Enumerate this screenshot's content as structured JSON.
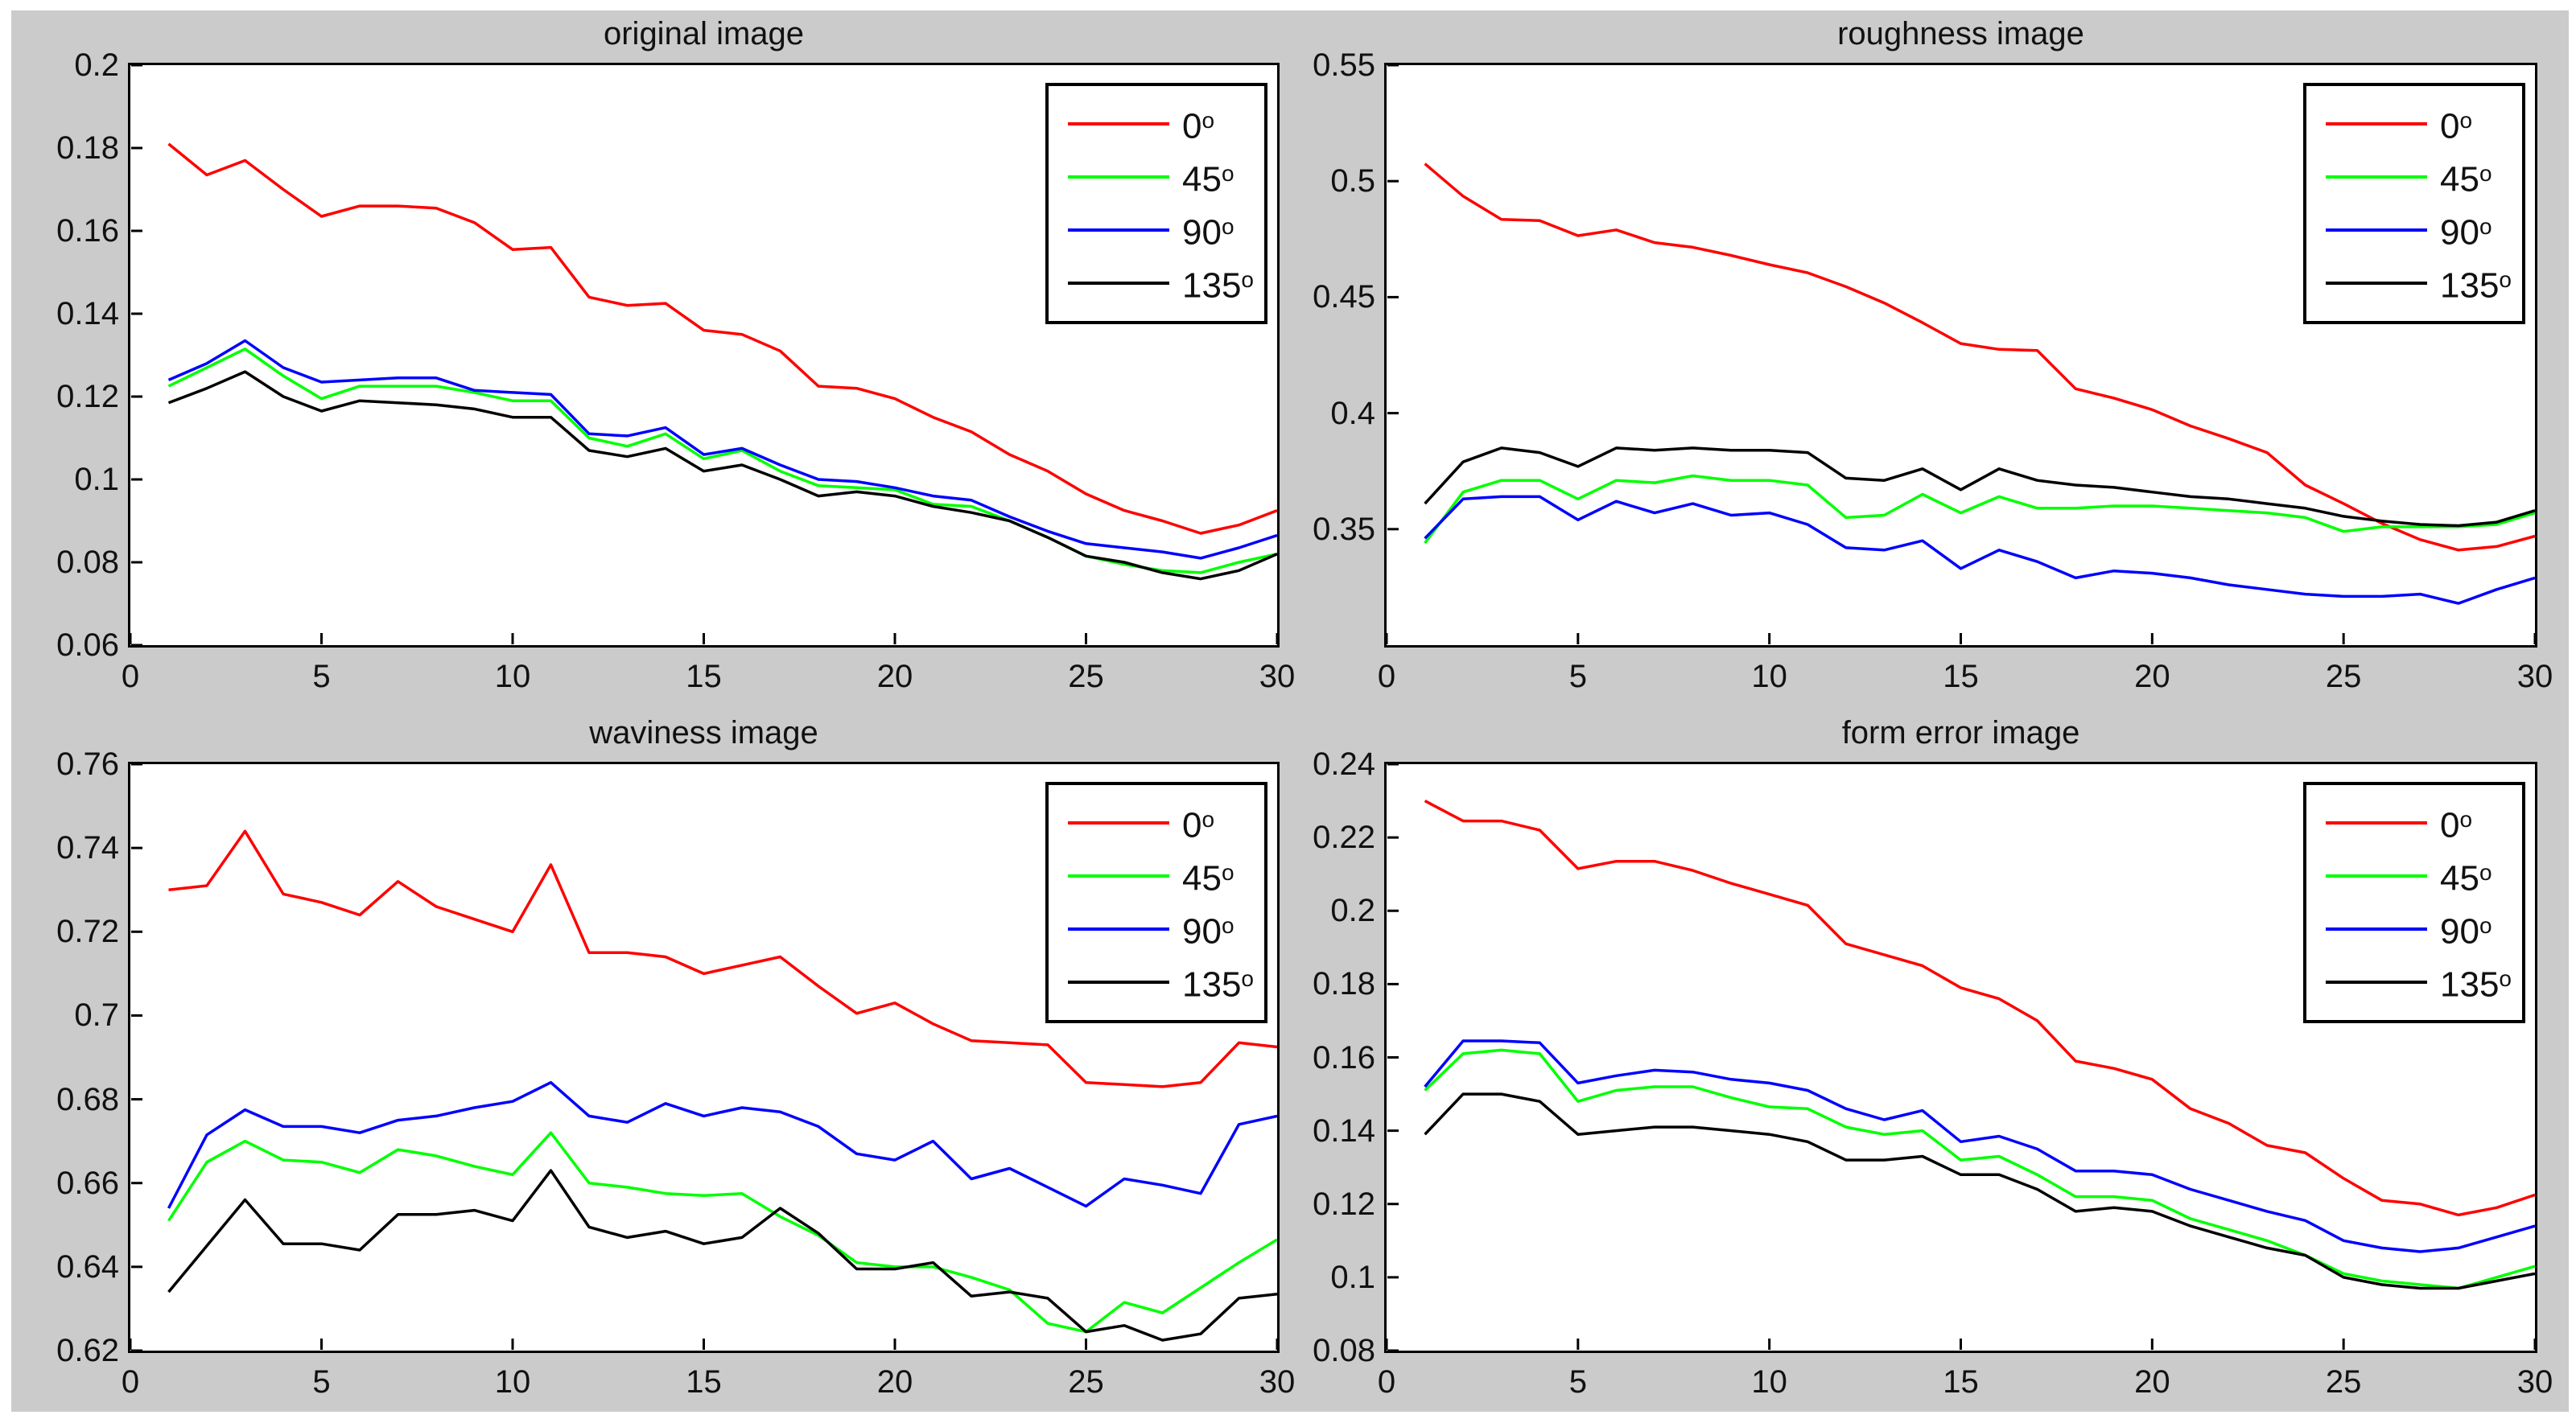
{
  "figure": {
    "background_color": "#cbcbcb",
    "page_background": "#ffffff",
    "axes_background": "#ffffff",
    "axis_color": "#000000"
  },
  "legend": {
    "position": "northeast",
    "items": [
      {
        "label": "0",
        "sup": "o",
        "color": "#ff0000"
      },
      {
        "label": "45",
        "sup": "o",
        "color": "#00ff00"
      },
      {
        "label": "90",
        "sup": "o",
        "color": "#0000ff"
      },
      {
        "label": "135",
        "sup": "o",
        "color": "#000000"
      }
    ]
  },
  "chart_data": [
    {
      "type": "line",
      "title": "original image",
      "xlabel": "",
      "ylabel": "",
      "xlim": [
        0,
        30
      ],
      "ylim": [
        0.06,
        0.2
      ],
      "grid": false,
      "legend_position": "northeast",
      "xticks": [
        {
          "value": 0,
          "label": "0"
        },
        {
          "value": 5,
          "label": "5"
        },
        {
          "value": 10,
          "label": "10"
        },
        {
          "value": 15,
          "label": "15"
        },
        {
          "value": 20,
          "label": "20"
        },
        {
          "value": 25,
          "label": "25"
        },
        {
          "value": 30,
          "label": "30"
        }
      ],
      "yticks": [
        {
          "value": 0.06,
          "label": "0.06"
        },
        {
          "value": 0.08,
          "label": "0.08"
        },
        {
          "value": 0.1,
          "label": "0.1"
        },
        {
          "value": 0.12,
          "label": "0.12"
        },
        {
          "value": 0.14,
          "label": "0.14"
        },
        {
          "value": 0.16,
          "label": "0.16"
        },
        {
          "value": 0.18,
          "label": "0.18"
        },
        {
          "value": 0.2,
          "label": "0.2"
        }
      ],
      "x_values": [
        1,
        2,
        3,
        4,
        5,
        6,
        7,
        8,
        9,
        10,
        11,
        12,
        13,
        14,
        15,
        16,
        17,
        18,
        19,
        20,
        21,
        22,
        23,
        24,
        25,
        26,
        27,
        28,
        29,
        30
      ],
      "series": [
        {
          "name": "0",
          "sup": "o",
          "color": "#ff0000",
          "values": [
            0.181,
            0.1735,
            0.177,
            0.17,
            0.1635,
            0.166,
            0.166,
            0.1655,
            0.162,
            0.1555,
            0.156,
            0.144,
            0.142,
            0.1425,
            0.136,
            0.135,
            0.131,
            0.1225,
            0.122,
            0.1195,
            0.115,
            0.1115,
            0.106,
            0.102,
            0.0965,
            0.0925,
            0.09,
            0.087,
            0.089,
            0.0925
          ]
        },
        {
          "name": "45",
          "sup": "o",
          "color": "#00ff00",
          "values": [
            0.1225,
            0.127,
            0.1315,
            0.125,
            0.1195,
            0.1225,
            0.1225,
            0.1225,
            0.121,
            0.119,
            0.119,
            0.11,
            0.108,
            0.111,
            0.105,
            0.107,
            0.102,
            0.0985,
            0.098,
            0.0975,
            0.094,
            0.0935,
            0.09,
            0.086,
            0.0815,
            0.0795,
            0.078,
            0.0775,
            0.08,
            0.082
          ]
        },
        {
          "name": "90",
          "sup": "o",
          "color": "#0000ff",
          "values": [
            0.124,
            0.128,
            0.1335,
            0.127,
            0.1235,
            0.124,
            0.1245,
            0.1245,
            0.1215,
            0.121,
            0.1205,
            0.111,
            0.1105,
            0.1125,
            0.106,
            0.1075,
            0.1035,
            0.1,
            0.0995,
            0.098,
            0.096,
            0.095,
            0.091,
            0.0875,
            0.0845,
            0.0835,
            0.0825,
            0.081,
            0.0835,
            0.0865
          ]
        },
        {
          "name": "135",
          "sup": "o",
          "color": "#000000",
          "values": [
            0.1185,
            0.122,
            0.126,
            0.12,
            0.1165,
            0.119,
            0.1185,
            0.118,
            0.117,
            0.115,
            0.115,
            0.107,
            0.1055,
            0.1075,
            0.102,
            0.1035,
            0.1,
            0.096,
            0.097,
            0.096,
            0.0935,
            0.092,
            0.09,
            0.086,
            0.0815,
            0.08,
            0.0775,
            0.076,
            0.078,
            0.082
          ]
        }
      ]
    },
    {
      "type": "line",
      "title": "roughness image",
      "xlabel": "",
      "ylabel": "",
      "xlim": [
        0,
        30
      ],
      "ylim": [
        0.3,
        0.55
      ],
      "grid": false,
      "legend_position": "northeast",
      "xticks": [
        {
          "value": 0,
          "label": "0"
        },
        {
          "value": 5,
          "label": "5"
        },
        {
          "value": 10,
          "label": "10"
        },
        {
          "value": 15,
          "label": "15"
        },
        {
          "value": 20,
          "label": "20"
        },
        {
          "value": 25,
          "label": "25"
        },
        {
          "value": 30,
          "label": "30"
        }
      ],
      "yticks": [
        {
          "value": 0.35,
          "label": "0.35"
        },
        {
          "value": 0.4,
          "label": "0.4"
        },
        {
          "value": 0.45,
          "label": "0.45"
        },
        {
          "value": 0.5,
          "label": "0.5"
        },
        {
          "value": 0.55,
          "label": "0.55"
        }
      ],
      "x_values": [
        1,
        2,
        3,
        4,
        5,
        6,
        7,
        8,
        9,
        10,
        11,
        12,
        13,
        14,
        15,
        16,
        17,
        18,
        19,
        20,
        21,
        22,
        23,
        24,
        25,
        26,
        27,
        28,
        29,
        30
      ],
      "series": [
        {
          "name": "0",
          "sup": "o",
          "color": "#ff0000",
          "values": [
            0.5075,
            0.4935,
            0.4835,
            0.483,
            0.4765,
            0.479,
            0.4735,
            0.4715,
            0.468,
            0.464,
            0.4605,
            0.4545,
            0.4475,
            0.439,
            0.43,
            0.4275,
            0.427,
            0.4105,
            0.4065,
            0.4015,
            0.3945,
            0.389,
            0.383,
            0.369,
            0.361,
            0.3525,
            0.3455,
            0.341,
            0.3425,
            0.347
          ]
        },
        {
          "name": "45",
          "sup": "o",
          "color": "#00ff00",
          "values": [
            0.344,
            0.366,
            0.371,
            0.371,
            0.363,
            0.371,
            0.37,
            0.373,
            0.371,
            0.371,
            0.369,
            0.355,
            0.356,
            0.365,
            0.357,
            0.364,
            0.359,
            0.359,
            0.36,
            0.36,
            0.359,
            0.358,
            0.357,
            0.355,
            0.349,
            0.351,
            0.351,
            0.351,
            0.352,
            0.357
          ]
        },
        {
          "name": "90",
          "sup": "o",
          "color": "#0000ff",
          "values": [
            0.346,
            0.363,
            0.364,
            0.364,
            0.354,
            0.362,
            0.357,
            0.361,
            0.356,
            0.357,
            0.352,
            0.342,
            0.341,
            0.345,
            0.333,
            0.341,
            0.336,
            0.329,
            0.332,
            0.331,
            0.329,
            0.326,
            0.324,
            0.322,
            0.321,
            0.321,
            0.322,
            0.318,
            0.324,
            0.329
          ]
        },
        {
          "name": "135",
          "sup": "o",
          "color": "#000000",
          "values": [
            0.361,
            0.379,
            0.385,
            0.383,
            0.377,
            0.385,
            0.384,
            0.385,
            0.384,
            0.384,
            0.383,
            0.372,
            0.371,
            0.376,
            0.367,
            0.376,
            0.371,
            0.369,
            0.368,
            0.366,
            0.364,
            0.363,
            0.361,
            0.359,
            0.3555,
            0.3535,
            0.352,
            0.3515,
            0.353,
            0.358
          ]
        }
      ]
    },
    {
      "type": "line",
      "title": "waviness image",
      "xlabel": "",
      "ylabel": "",
      "xlim": [
        0,
        30
      ],
      "ylim": [
        0.62,
        0.76
      ],
      "grid": false,
      "legend_position": "northeast",
      "xticks": [
        {
          "value": 0,
          "label": "0"
        },
        {
          "value": 5,
          "label": "5"
        },
        {
          "value": 10,
          "label": "10"
        },
        {
          "value": 15,
          "label": "15"
        },
        {
          "value": 20,
          "label": "20"
        },
        {
          "value": 25,
          "label": "25"
        },
        {
          "value": 30,
          "label": "30"
        }
      ],
      "yticks": [
        {
          "value": 0.62,
          "label": "0.62"
        },
        {
          "value": 0.64,
          "label": "0.64"
        },
        {
          "value": 0.66,
          "label": "0.66"
        },
        {
          "value": 0.68,
          "label": "0.68"
        },
        {
          "value": 0.7,
          "label": "0.7"
        },
        {
          "value": 0.72,
          "label": "0.72"
        },
        {
          "value": 0.74,
          "label": "0.74"
        },
        {
          "value": 0.76,
          "label": "0.76"
        }
      ],
      "x_values": [
        1,
        2,
        3,
        4,
        5,
        6,
        7,
        8,
        9,
        10,
        11,
        12,
        13,
        14,
        15,
        16,
        17,
        18,
        19,
        20,
        21,
        22,
        23,
        24,
        25,
        26,
        27,
        28,
        29,
        30
      ],
      "series": [
        {
          "name": "0",
          "sup": "o",
          "color": "#ff0000",
          "values": [
            0.73,
            0.731,
            0.744,
            0.729,
            0.727,
            0.724,
            0.732,
            0.726,
            0.723,
            0.72,
            0.736,
            0.715,
            0.715,
            0.714,
            0.71,
            0.712,
            0.714,
            0.707,
            0.7005,
            0.703,
            0.698,
            0.694,
            0.6935,
            0.693,
            0.684,
            0.6835,
            0.683,
            0.684,
            0.6935,
            0.6925
          ]
        },
        {
          "name": "45",
          "sup": "o",
          "color": "#00ff00",
          "values": [
            0.651,
            0.665,
            0.67,
            0.6655,
            0.665,
            0.6625,
            0.668,
            0.6665,
            0.664,
            0.662,
            0.672,
            0.66,
            0.659,
            0.6575,
            0.657,
            0.6575,
            0.652,
            0.6475,
            0.641,
            0.64,
            0.64,
            0.6375,
            0.6345,
            0.6265,
            0.6245,
            0.6315,
            0.629,
            0.635,
            0.641,
            0.6465
          ]
        },
        {
          "name": "90",
          "sup": "o",
          "color": "#0000ff",
          "values": [
            0.654,
            0.6715,
            0.6775,
            0.6735,
            0.6735,
            0.672,
            0.675,
            0.676,
            0.678,
            0.6795,
            0.684,
            0.676,
            0.6745,
            0.679,
            0.676,
            0.678,
            0.677,
            0.6735,
            0.667,
            0.6655,
            0.67,
            0.661,
            0.6635,
            0.659,
            0.6545,
            0.661,
            0.6595,
            0.6575,
            0.674,
            0.676
          ]
        },
        {
          "name": "135",
          "sup": "o",
          "color": "#000000",
          "values": [
            0.634,
            0.645,
            0.656,
            0.6455,
            0.6455,
            0.644,
            0.6525,
            0.6525,
            0.6535,
            0.651,
            0.663,
            0.6495,
            0.647,
            0.6485,
            0.6455,
            0.647,
            0.654,
            0.648,
            0.6395,
            0.6395,
            0.641,
            0.633,
            0.634,
            0.6325,
            0.6245,
            0.626,
            0.6225,
            0.624,
            0.6325,
            0.6335
          ]
        }
      ]
    },
    {
      "type": "line",
      "title": "form error image",
      "xlabel": "",
      "ylabel": "",
      "xlim": [
        0,
        30
      ],
      "ylim": [
        0.08,
        0.24
      ],
      "grid": false,
      "legend_position": "northeast",
      "xticks": [
        {
          "value": 0,
          "label": "0"
        },
        {
          "value": 5,
          "label": "5"
        },
        {
          "value": 10,
          "label": "10"
        },
        {
          "value": 15,
          "label": "15"
        },
        {
          "value": 20,
          "label": "20"
        },
        {
          "value": 25,
          "label": "25"
        },
        {
          "value": 30,
          "label": "30"
        }
      ],
      "yticks": [
        {
          "value": 0.08,
          "label": "0.08"
        },
        {
          "value": 0.1,
          "label": "0.1"
        },
        {
          "value": 0.12,
          "label": "0.12"
        },
        {
          "value": 0.14,
          "label": "0.14"
        },
        {
          "value": 0.16,
          "label": "0.16"
        },
        {
          "value": 0.18,
          "label": "0.18"
        },
        {
          "value": 0.2,
          "label": "0.2"
        },
        {
          "value": 0.22,
          "label": "0.22"
        },
        {
          "value": 0.24,
          "label": "0.24"
        }
      ],
      "x_values": [
        1,
        2,
        3,
        4,
        5,
        6,
        7,
        8,
        9,
        10,
        11,
        12,
        13,
        14,
        15,
        16,
        17,
        18,
        19,
        20,
        21,
        22,
        23,
        24,
        25,
        26,
        27,
        28,
        29,
        30
      ],
      "series": [
        {
          "name": "0",
          "sup": "o",
          "color": "#ff0000",
          "values": [
            0.23,
            0.2245,
            0.2245,
            0.222,
            0.2115,
            0.2135,
            0.2135,
            0.211,
            0.2075,
            0.2045,
            0.2015,
            0.191,
            0.188,
            0.185,
            0.179,
            0.176,
            0.17,
            0.159,
            0.157,
            0.154,
            0.146,
            0.142,
            0.136,
            0.134,
            0.127,
            0.121,
            0.12,
            0.117,
            0.119,
            0.1225
          ]
        },
        {
          "name": "45",
          "sup": "o",
          "color": "#00ff00",
          "values": [
            0.151,
            0.161,
            0.162,
            0.161,
            0.148,
            0.151,
            0.152,
            0.152,
            0.149,
            0.1465,
            0.146,
            0.141,
            0.139,
            0.14,
            0.132,
            0.133,
            0.128,
            0.122,
            0.122,
            0.121,
            0.116,
            0.113,
            0.11,
            0.106,
            0.101,
            0.099,
            0.098,
            0.097,
            0.1,
            0.103
          ]
        },
        {
          "name": "90",
          "sup": "o",
          "color": "#0000ff",
          "values": [
            0.152,
            0.1645,
            0.1645,
            0.164,
            0.153,
            0.155,
            0.1565,
            0.156,
            0.154,
            0.153,
            0.151,
            0.146,
            0.143,
            0.1455,
            0.137,
            0.1385,
            0.135,
            0.129,
            0.129,
            0.128,
            0.124,
            0.121,
            0.118,
            0.1155,
            0.11,
            0.108,
            0.107,
            0.108,
            0.111,
            0.114
          ]
        },
        {
          "name": "135",
          "sup": "o",
          "color": "#000000",
          "values": [
            0.139,
            0.15,
            0.15,
            0.148,
            0.139,
            0.14,
            0.141,
            0.141,
            0.14,
            0.139,
            0.137,
            0.132,
            0.132,
            0.133,
            0.128,
            0.128,
            0.124,
            0.118,
            0.119,
            0.118,
            0.114,
            0.111,
            0.108,
            0.106,
            0.1,
            0.098,
            0.097,
            0.097,
            0.099,
            0.101
          ]
        }
      ]
    }
  ]
}
